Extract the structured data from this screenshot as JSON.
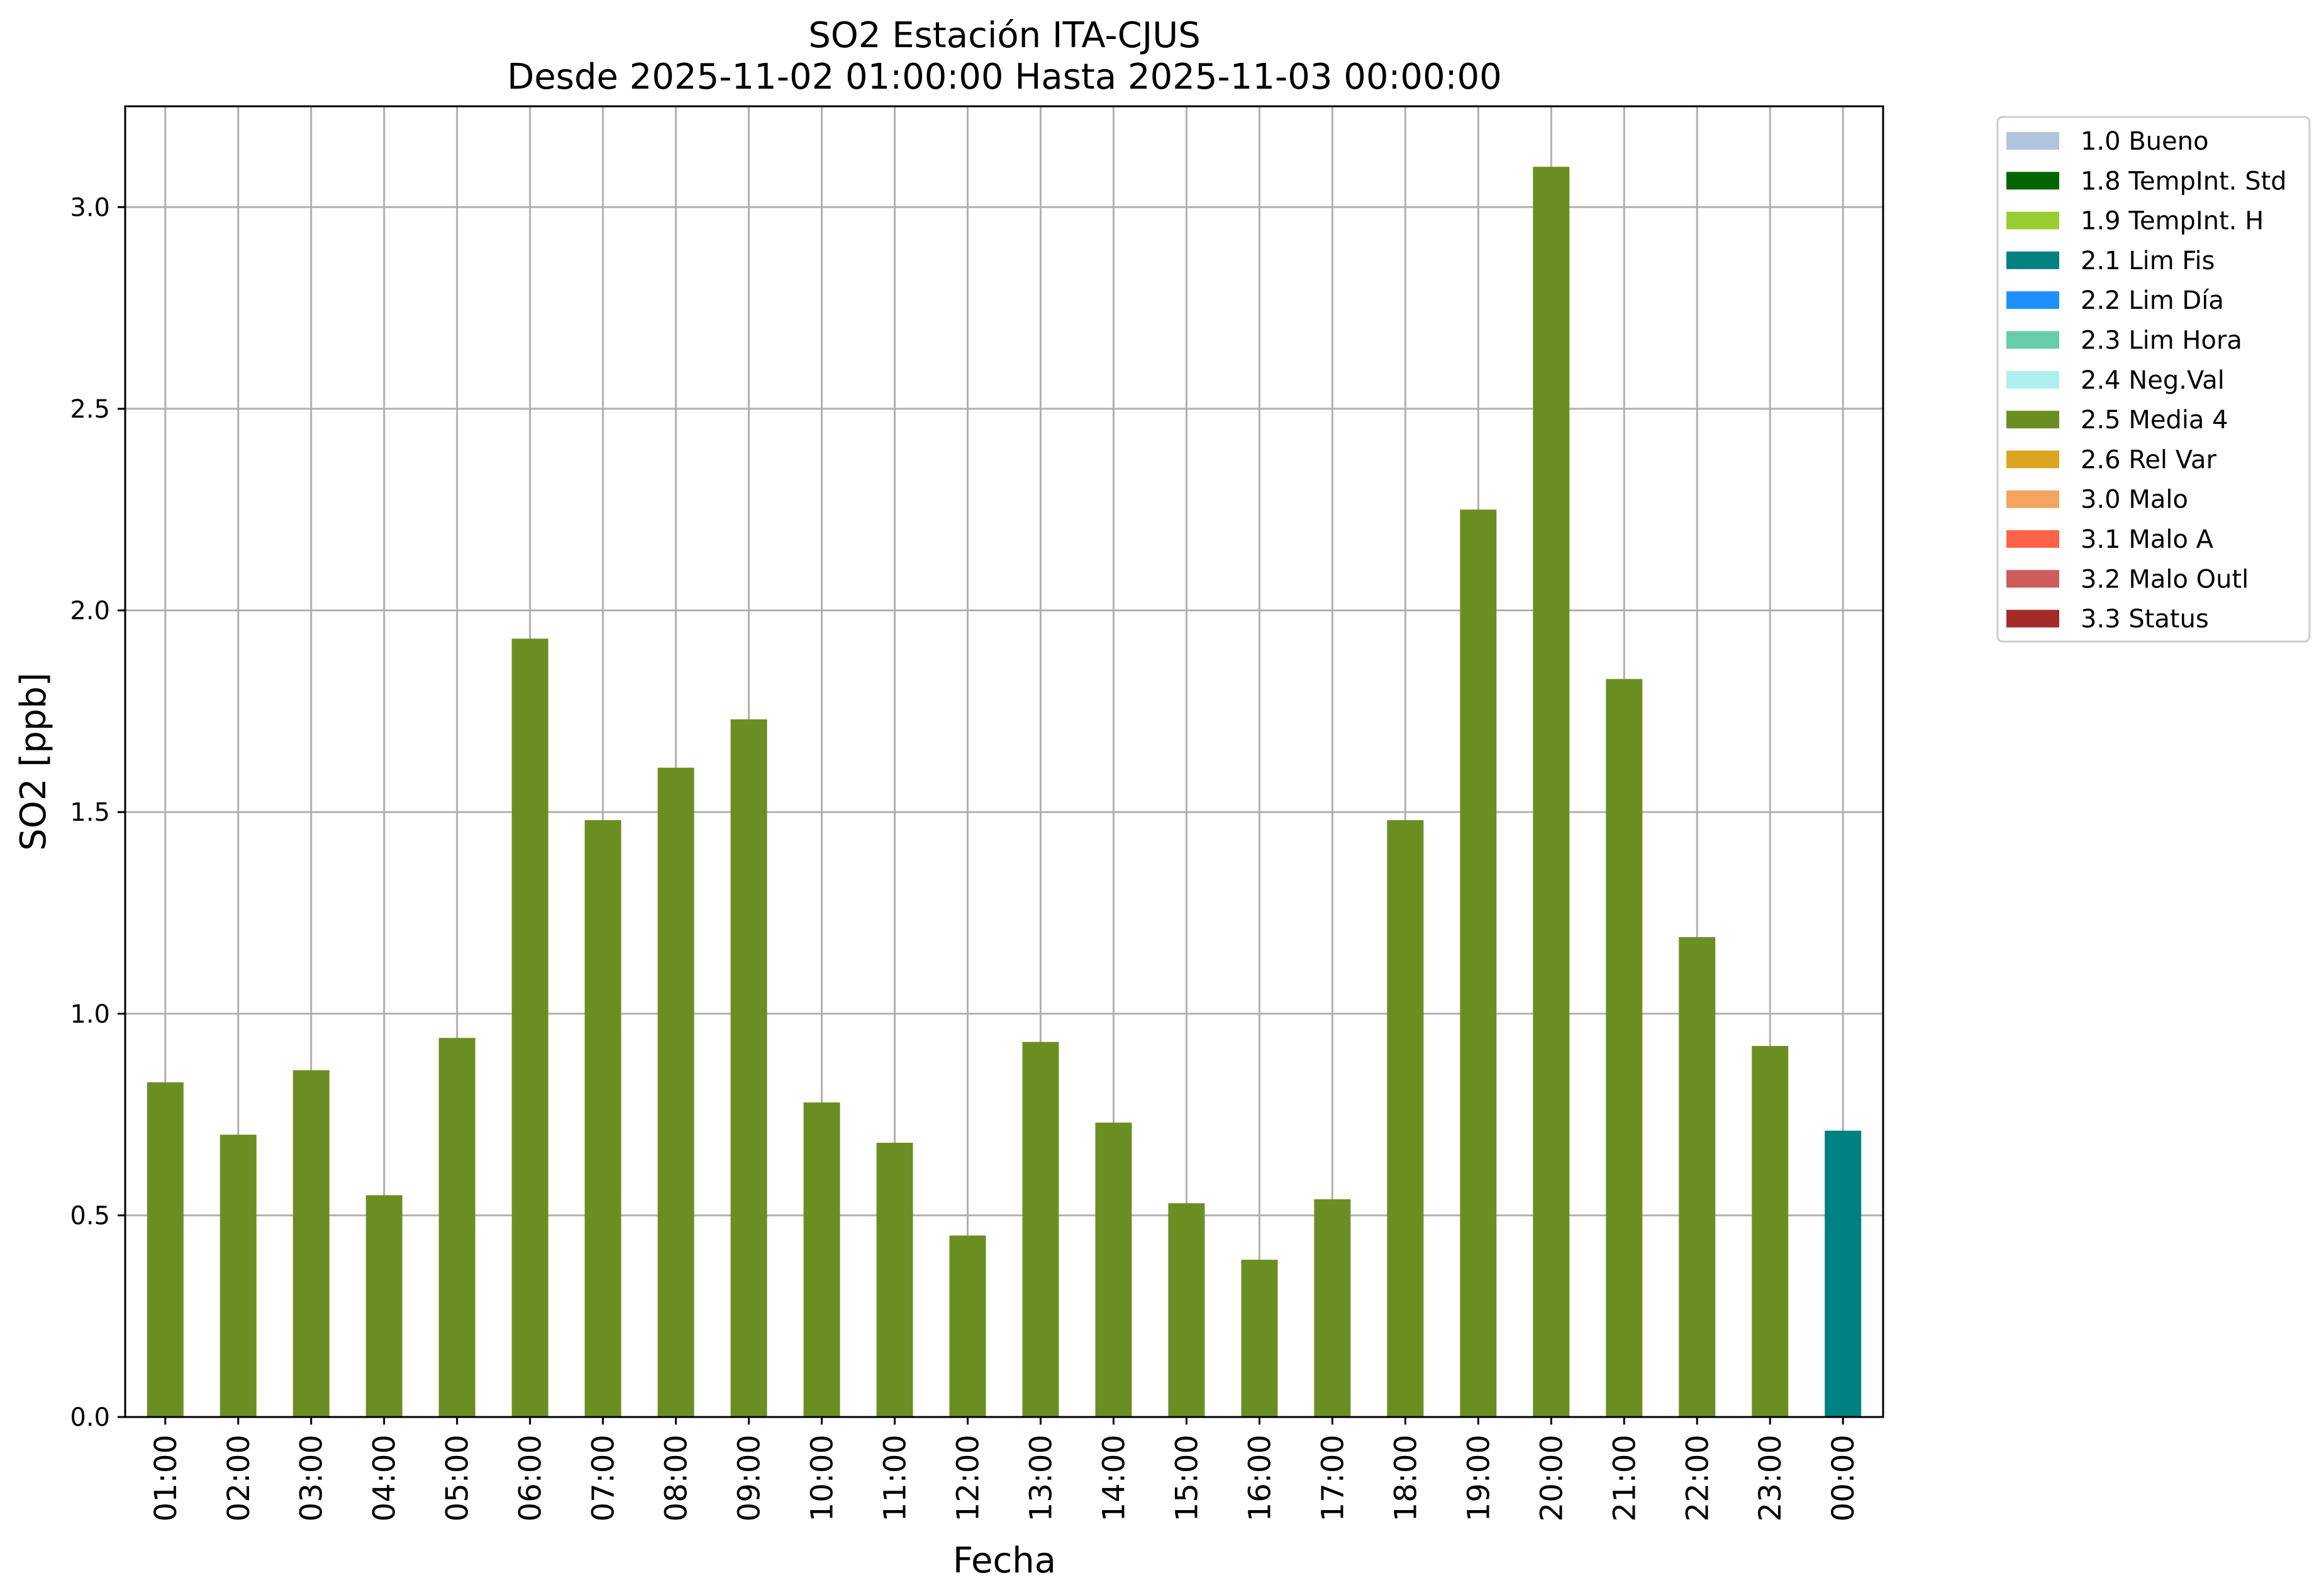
{
  "chart_data": {
    "type": "bar",
    "title": [
      "SO2 Estación ITA-CJUS",
      "Desde 2025-11-02 01:00:00 Hasta 2025-11-03 00:00:00"
    ],
    "xlabel": "Fecha",
    "ylabel": "SO2 [ppb]",
    "ylim": [
      0,
      3.25
    ],
    "yticks": [
      "0.0",
      "0.5",
      "1.0",
      "1.5",
      "2.0",
      "2.5",
      "3.0"
    ],
    "grid": true,
    "legend_position": "outside right, top",
    "categories": [
      "01:00",
      "02:00",
      "03:00",
      "04:00",
      "05:00",
      "06:00",
      "07:00",
      "08:00",
      "09:00",
      "10:00",
      "11:00",
      "12:00",
      "13:00",
      "14:00",
      "15:00",
      "16:00",
      "17:00",
      "18:00",
      "19:00",
      "20:00",
      "21:00",
      "22:00",
      "23:00",
      "00:00"
    ],
    "values": [
      0.83,
      0.7,
      0.86,
      0.55,
      0.94,
      1.93,
      1.48,
      1.61,
      1.73,
      0.78,
      0.68,
      0.45,
      0.93,
      0.73,
      0.53,
      0.39,
      0.54,
      1.48,
      2.25,
      3.1,
      1.83,
      1.19,
      0.92,
      0.71
    ],
    "bar_flags": [
      "2.5 Media 4",
      "2.5 Media 4",
      "2.5 Media 4",
      "2.5 Media 4",
      "2.5 Media 4",
      "2.5 Media 4",
      "2.5 Media 4",
      "2.5 Media 4",
      "2.5 Media 4",
      "2.5 Media 4",
      "2.5 Media 4",
      "2.5 Media 4",
      "2.5 Media 4",
      "2.5 Media 4",
      "2.5 Media 4",
      "2.5 Media 4",
      "2.5 Media 4",
      "2.5 Media 4",
      "2.5 Media 4",
      "2.5 Media 4",
      "2.5 Media 4",
      "2.5 Media 4",
      "2.5 Media 4",
      "2.1 Lim Fis"
    ],
    "legend": [
      {
        "label": "1.0 Bueno",
        "color": "#b0c4de"
      },
      {
        "label": "1.8 TempInt. Std",
        "color": "#006400"
      },
      {
        "label": "1.9 TempInt. H",
        "color": "#9acd32"
      },
      {
        "label": "2.1 Lim Fis",
        "color": "#008080"
      },
      {
        "label": "2.2 Lim Día",
        "color": "#1e90ff"
      },
      {
        "label": "2.3 Lim Hora",
        "color": "#66cdaa"
      },
      {
        "label": "2.4 Neg.Val",
        "color": "#afeeee"
      },
      {
        "label": "2.5 Media 4",
        "color": "#6b8e23"
      },
      {
        "label": "2.6 Rel Var",
        "color": "#daa520"
      },
      {
        "label": "3.0 Malo",
        "color": "#f4a460"
      },
      {
        "label": "3.1 Malo A",
        "color": "#ff6347"
      },
      {
        "label": "3.2 Malo Outl",
        "color": "#cd5c5c"
      },
      {
        "label": "3.3 Status",
        "color": "#a52a2a"
      }
    ]
  }
}
